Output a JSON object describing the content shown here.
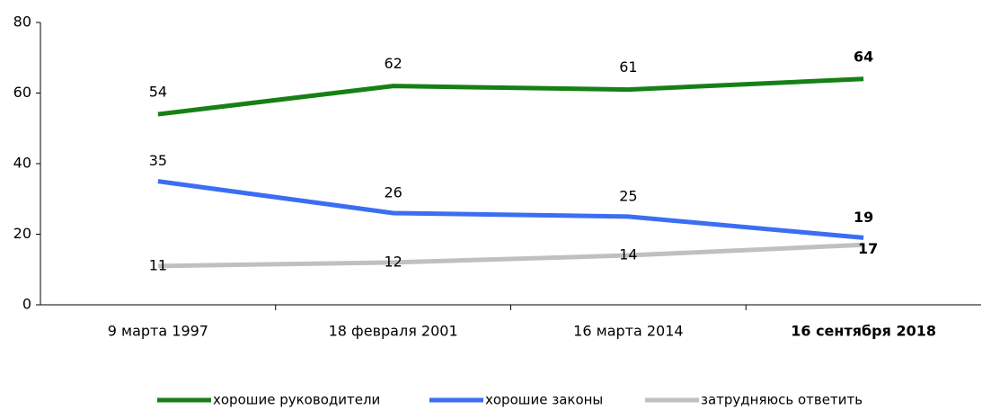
{
  "chart_data": {
    "type": "line",
    "categories": [
      "9 марта 1997",
      "18 февраля 2001",
      "16 марта 2014",
      "16 сентября 2018"
    ],
    "series": [
      {
        "name": "хорошие руководители",
        "color": "#168016",
        "values": [
          54,
          62,
          61,
          64
        ]
      },
      {
        "name": "хорошие законы",
        "color": "#3b6ef2",
        "values": [
          35,
          26,
          25,
          19
        ]
      },
      {
        "name": "затрудняюсь ответить",
        "color": "#c0c0c0",
        "values": [
          11,
          12,
          14,
          17
        ]
      }
    ],
    "ylim": [
      0,
      80
    ],
    "yticks": [
      0,
      20,
      40,
      60,
      80
    ],
    "legend": "bottom"
  }
}
